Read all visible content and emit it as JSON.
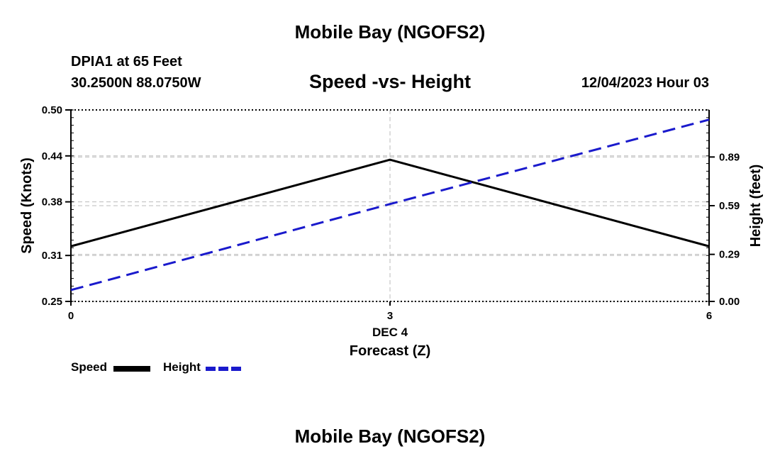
{
  "title_top": "Mobile Bay (NGOFS2)",
  "title_bottom": "Mobile Bay (NGOFS2)",
  "station": "DPIA1 at 65 Feet",
  "coords": "30.2500N  88.0750W",
  "datetime": "12/04/2023 Hour 03",
  "chart_data": {
    "type": "line",
    "title": "Speed -vs- Height",
    "x": [
      0,
      3,
      6
    ],
    "xlim": [
      0,
      6
    ],
    "x_ticks": [
      "0",
      "3",
      "6"
    ],
    "x_date_label": "DEC 4",
    "xlabel": "Forecast (Z)",
    "ylabel_left": "Speed (Knots)",
    "ylabel_right": "Height (feet)",
    "ylim_left": [
      0.25,
      0.5
    ],
    "ylim_right": [
      0.0,
      1.18
    ],
    "left_ticks": [
      "0.25",
      "0.31",
      "0.38",
      "0.44",
      "0.50"
    ],
    "right_ticks": [
      "0.00",
      "0.29",
      "0.59",
      "0.89"
    ],
    "series": [
      {
        "name": "Speed",
        "axis": "left",
        "style": "solid",
        "color": "#000000",
        "values": [
          0.322,
          0.435,
          0.322
        ]
      },
      {
        "name": "Height",
        "axis": "right",
        "style": "dashed",
        "color": "#1a1acc",
        "values": [
          0.07,
          0.6,
          1.12
        ]
      }
    ],
    "legend": [
      "Speed",
      "Height"
    ],
    "grid": true
  }
}
